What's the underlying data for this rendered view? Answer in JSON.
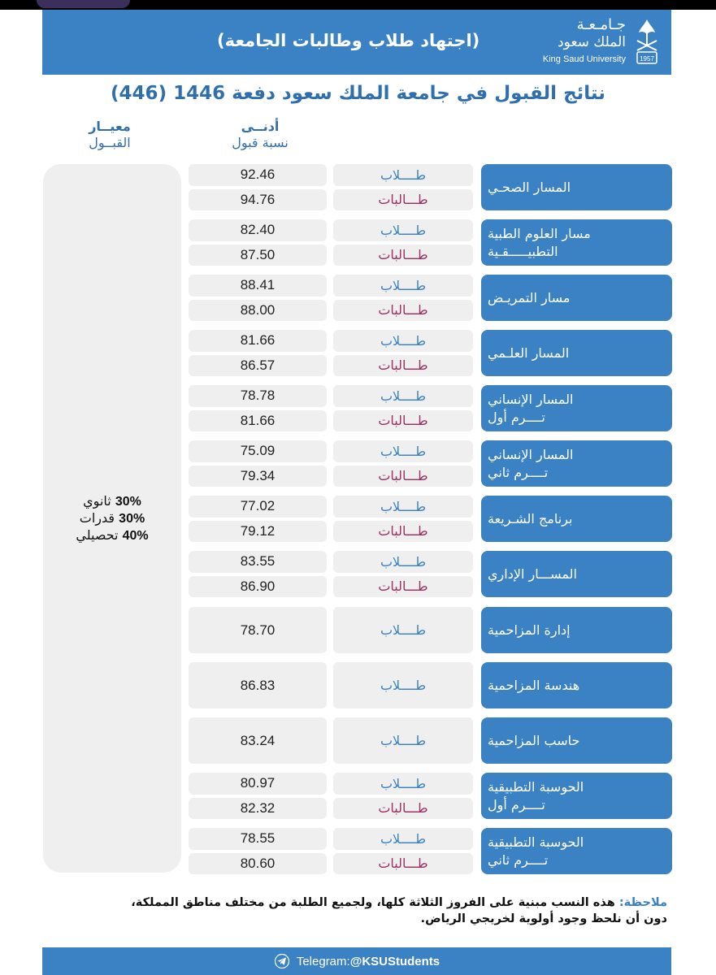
{
  "header": {
    "logo_ar_line1": "جـامـعـة",
    "logo_ar_line2": "الملك سعود",
    "logo_en": "King Saud University",
    "title": "(اجتهاد طلاب وطالبات الجامعة)"
  },
  "main_title": "نتائج القبول في جامعة الملك سعود دفعة 1446 (446)",
  "columns": {
    "min_line1": "أدنــى",
    "min_line2": "نسبة قبول",
    "criteria_line1": "معيــار",
    "criteria_line2": "القبــول"
  },
  "labels": {
    "male": "طــــلاب",
    "female": "طـــالبات"
  },
  "tracks": [
    {
      "lines": [
        "المسار الصحـي"
      ],
      "values": {
        "male": "92.46",
        "female": "94.76"
      }
    },
    {
      "lines": [
        "مسار العلوم الطبية",
        "التطبيـــــقـية"
      ],
      "values": {
        "male": "82.40",
        "female": "87.50"
      }
    },
    {
      "lines": [
        "مسار التمريـض"
      ],
      "values": {
        "male": "88.41",
        "female": "88.00"
      }
    },
    {
      "lines": [
        "المسار العلـمي"
      ],
      "values": {
        "male": "81.66",
        "female": "86.57"
      }
    },
    {
      "lines": [
        "المسار الإنساني",
        "تــــرم أول"
      ],
      "values": {
        "male": "78.78",
        "female": "81.66"
      }
    },
    {
      "lines": [
        "المسار الإنساني",
        "تــــرم ثاني"
      ],
      "values": {
        "male": "75.09",
        "female": "79.34"
      }
    },
    {
      "lines": [
        "برنامج الشـريعة"
      ],
      "values": {
        "male": "77.02",
        "female": "79.12"
      }
    },
    {
      "lines": [
        "المســـار الإداري"
      ],
      "values": {
        "male": "83.55",
        "female": "86.90"
      }
    },
    {
      "lines": [
        "إدارة المزاحمية"
      ],
      "values": {
        "male": "78.70"
      }
    },
    {
      "lines": [
        "هندسة المزاحمية"
      ],
      "values": {
        "male": "86.83"
      }
    },
    {
      "lines": [
        "حاسب المزاحمية"
      ],
      "values": {
        "male": "83.24"
      }
    },
    {
      "lines": [
        "الحوسبة التطبيقية",
        "تــــرم أول"
      ],
      "values": {
        "male": "80.97",
        "female": "82.32"
      }
    },
    {
      "lines": [
        "الحوسبة التطبيقية",
        "تــــرم ثاني"
      ],
      "values": {
        "male": "78.55",
        "female": "80.60"
      }
    }
  ],
  "criteria": [
    {
      "pct": "30%",
      "name": "ثانوي"
    },
    {
      "pct": "30%",
      "name": "قدرات"
    },
    {
      "pct": "40%",
      "name": "تحصيلي"
    }
  ],
  "note": {
    "label": "ملاحظة:",
    "line1": "هذه النسب مبنية على الفروز الثلاثة كلها، ولجميع الطلبة من مختلف مناطق المملكة،",
    "line2": "دون أن نلحظ وجود أولوية لخريجي الرياض."
  },
  "footer": {
    "text": "Telegram: ",
    "handle": "@KSUStudents"
  },
  "colors": {
    "brand_blue": "#3a82c3",
    "female_label": "#9c2f63",
    "cell_gray": "#efefef"
  }
}
